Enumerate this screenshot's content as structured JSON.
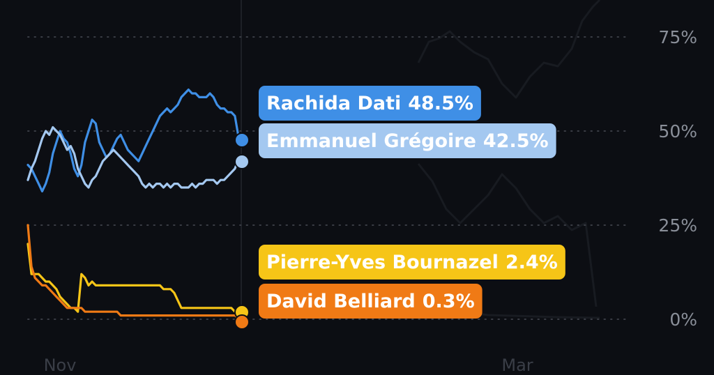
{
  "chart_data": {
    "type": "line",
    "y_unit": "%",
    "ylim": [
      0,
      85
    ],
    "y_ticks": [
      "75%",
      "50%",
      "25%",
      "0%"
    ],
    "y_tick_values": [
      75,
      50,
      25,
      0
    ],
    "x_ticks": [
      "Nov",
      "Mar"
    ],
    "grid": "horizontal dotted",
    "legend": "end-of-line labels, right of current date",
    "series": [
      {
        "name": "Rachida Dati",
        "value_label": "48.5%",
        "current": 48.5,
        "color": "#3f8fe6",
        "tag_text_color": "#ffffff",
        "values": [
          41,
          40,
          38,
          36,
          34,
          36,
          39,
          44,
          47,
          50,
          48,
          47,
          44,
          40,
          38,
          41,
          47,
          50,
          53,
          52,
          47,
          45,
          43,
          44,
          46,
          48,
          49,
          47,
          45,
          44,
          43,
          42,
          44,
          46,
          48,
          50,
          52,
          54,
          55,
          56,
          55,
          56,
          57,
          59,
          60,
          61,
          60,
          60,
          59,
          59,
          59,
          60,
          59,
          57,
          56,
          56,
          55,
          55,
          54,
          48.5
        ]
      },
      {
        "name": "Emmanuel Grégoire",
        "value_label": "42.5%",
        "current": 42.5,
        "color": "#a4c8f0",
        "tag_text_color": "#ffffff",
        "values": [
          37,
          40,
          42,
          45,
          48,
          50,
          49,
          51,
          50,
          49,
          47,
          45,
          46,
          44,
          40,
          38,
          36,
          35,
          37,
          38,
          40,
          42,
          43,
          44,
          45,
          44,
          43,
          42,
          41,
          40,
          39,
          38,
          36,
          35,
          36,
          35,
          36,
          36,
          35,
          36,
          35,
          36,
          36,
          35,
          35,
          35,
          36,
          35,
          36,
          36,
          37,
          37,
          37,
          36,
          37,
          37,
          38,
          39,
          40,
          42.5
        ]
      },
      {
        "name": "Pierre-Yves Bournazel",
        "value_label": "2.4%",
        "current": 2.4,
        "color": "#f6c517",
        "tag_text_color": "#ffffff",
        "values": [
          20,
          12,
          12,
          12,
          11,
          10,
          10,
          9,
          8,
          6,
          5,
          4,
          3,
          3,
          2,
          12,
          11,
          9,
          10,
          9,
          9,
          9,
          9,
          9,
          9,
          9,
          9,
          9,
          9,
          9,
          9,
          9,
          9,
          9,
          9,
          9,
          9,
          9,
          8,
          8,
          8,
          7,
          5,
          3,
          3,
          3,
          3,
          3,
          3,
          3,
          3,
          3,
          3,
          3,
          3,
          3,
          3,
          3,
          2,
          2.4
        ]
      },
      {
        "name": "David Belliard",
        "value_label": "0.3%",
        "current": 0.3,
        "color": "#f07a15",
        "tag_text_color": "#ffffff",
        "values": [
          25,
          14,
          11,
          10,
          9,
          9,
          8,
          7,
          6,
          5,
          4,
          3,
          3,
          3,
          3,
          3,
          2,
          2,
          2,
          2,
          2,
          2,
          2,
          2,
          2,
          2,
          1,
          1,
          1,
          1,
          1,
          1,
          1,
          1,
          1,
          1,
          1,
          1,
          1,
          1,
          1,
          1,
          1,
          1,
          1,
          1,
          1,
          1,
          1,
          1,
          1,
          1,
          1,
          1,
          1,
          1,
          1,
          1,
          1,
          0.3
        ]
      }
    ]
  }
}
